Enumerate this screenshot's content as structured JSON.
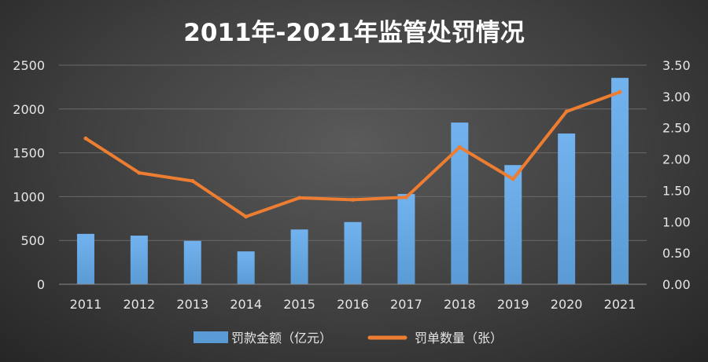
{
  "chart_data": {
    "type": "bar+line",
    "title": "2011年-2021年监管处罚情况",
    "categories": [
      "2011",
      "2012",
      "2013",
      "2014",
      "2015",
      "2016",
      "2017",
      "2018",
      "2019",
      "2020",
      "2021"
    ],
    "series": [
      {
        "name": "罚款金额（亿元）",
        "type": "bar",
        "axis": "left",
        "color": "#5b9bd5",
        "values": [
          575,
          555,
          495,
          375,
          625,
          710,
          1030,
          1845,
          1360,
          1720,
          2355
        ]
      },
      {
        "name": "罚单数量（张）",
        "type": "line",
        "axis": "right",
        "color": "#ed7d31",
        "values": [
          2.33,
          1.78,
          1.65,
          1.08,
          1.38,
          1.35,
          1.39,
          2.19,
          1.68,
          2.76,
          3.07
        ]
      }
    ],
    "y_left": {
      "ylim": [
        0,
        2500
      ],
      "ticks": [
        "0",
        "500",
        "1000",
        "1500",
        "2000",
        "2500"
      ]
    },
    "y_right": {
      "ylim": [
        0,
        3.5
      ],
      "ticks": [
        "0.00",
        "0.50",
        "1.00",
        "1.50",
        "2.00",
        "2.50",
        "3.00",
        "3.50"
      ]
    },
    "grid": true,
    "legend_position": "bottom"
  }
}
